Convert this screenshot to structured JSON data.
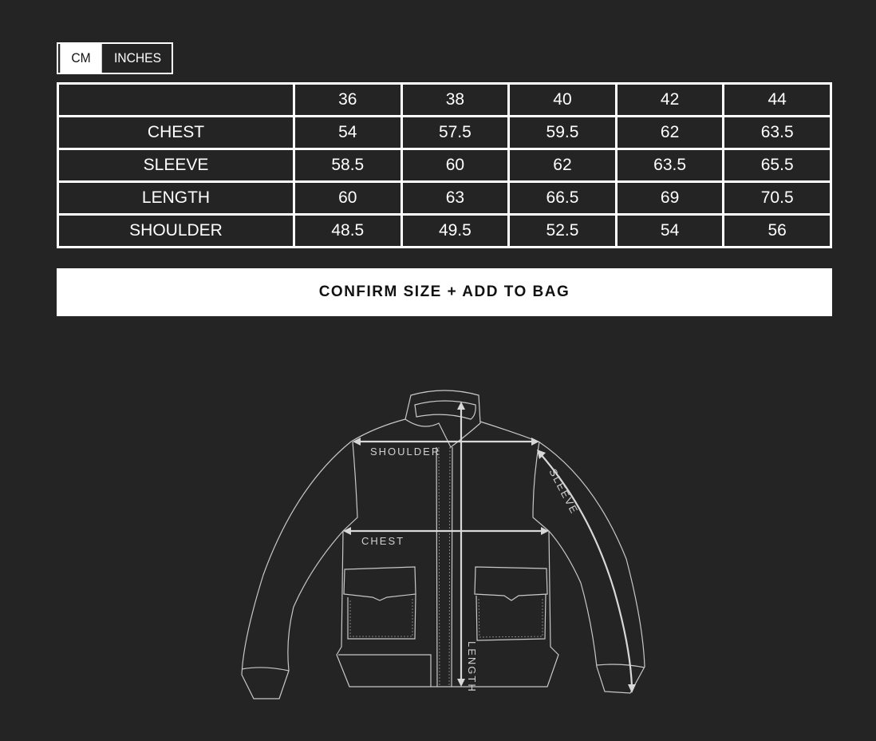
{
  "units": {
    "options": [
      "CM",
      "INCHES"
    ],
    "selected": "CM"
  },
  "size_table": {
    "headers": [
      "",
      "36",
      "38",
      "40",
      "42",
      "44"
    ],
    "rows": [
      {
        "label": "CHEST",
        "values": [
          "54",
          "57.5",
          "59.5",
          "62",
          "63.5"
        ]
      },
      {
        "label": "SLEEVE",
        "values": [
          "58.5",
          "60",
          "62",
          "63.5",
          "65.5"
        ]
      },
      {
        "label": "LENGTH",
        "values": [
          "60",
          "63",
          "66.5",
          "69",
          "70.5"
        ]
      },
      {
        "label": "SHOULDER",
        "values": [
          "48.5",
          "49.5",
          "52.5",
          "54",
          "56"
        ]
      }
    ]
  },
  "confirm_button": "CONFIRM SIZE + ADD TO BAG",
  "diagram": {
    "shoulder": "SHOULDER",
    "chest": "CHEST",
    "sleeve": "SLEEVE",
    "length": "LENGTH"
  }
}
